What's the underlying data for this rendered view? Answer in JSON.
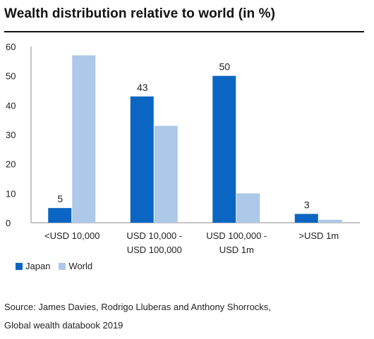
{
  "page": {
    "title": "Wealth distribution relative to world (in %)",
    "source_lines": [
      "Source: James Davies, Rodrigo Lluberas and Anthony Shorrocks,",
      "Global wealth databook 2019"
    ]
  },
  "chart_data": {
    "type": "bar",
    "title": "Wealth distribution relative to world (in %)",
    "categories": [
      [
        "<USD 10,000"
      ],
      [
        "USD 10,000 -",
        "USD 100,000"
      ],
      [
        "USD 100,000 -",
        "USD 1m"
      ],
      [
        ">USD 1m"
      ]
    ],
    "series": [
      {
        "name": "Japan",
        "values": [
          5,
          43,
          50,
          3
        ],
        "color": "#0a66c2",
        "labels": [
          "5",
          "43",
          "50",
          "3"
        ]
      },
      {
        "name": "World",
        "values": [
          57,
          33,
          10,
          1
        ],
        "color": "#adc8e8",
        "labels": [
          "",
          "",
          "",
          ""
        ]
      }
    ],
    "ylim": [
      0,
      60
    ],
    "yticks": [
      0,
      10,
      20,
      30,
      40,
      50,
      60
    ],
    "grid": false,
    "legend_position": "bottom-left",
    "xlabel": "",
    "ylabel": ""
  }
}
